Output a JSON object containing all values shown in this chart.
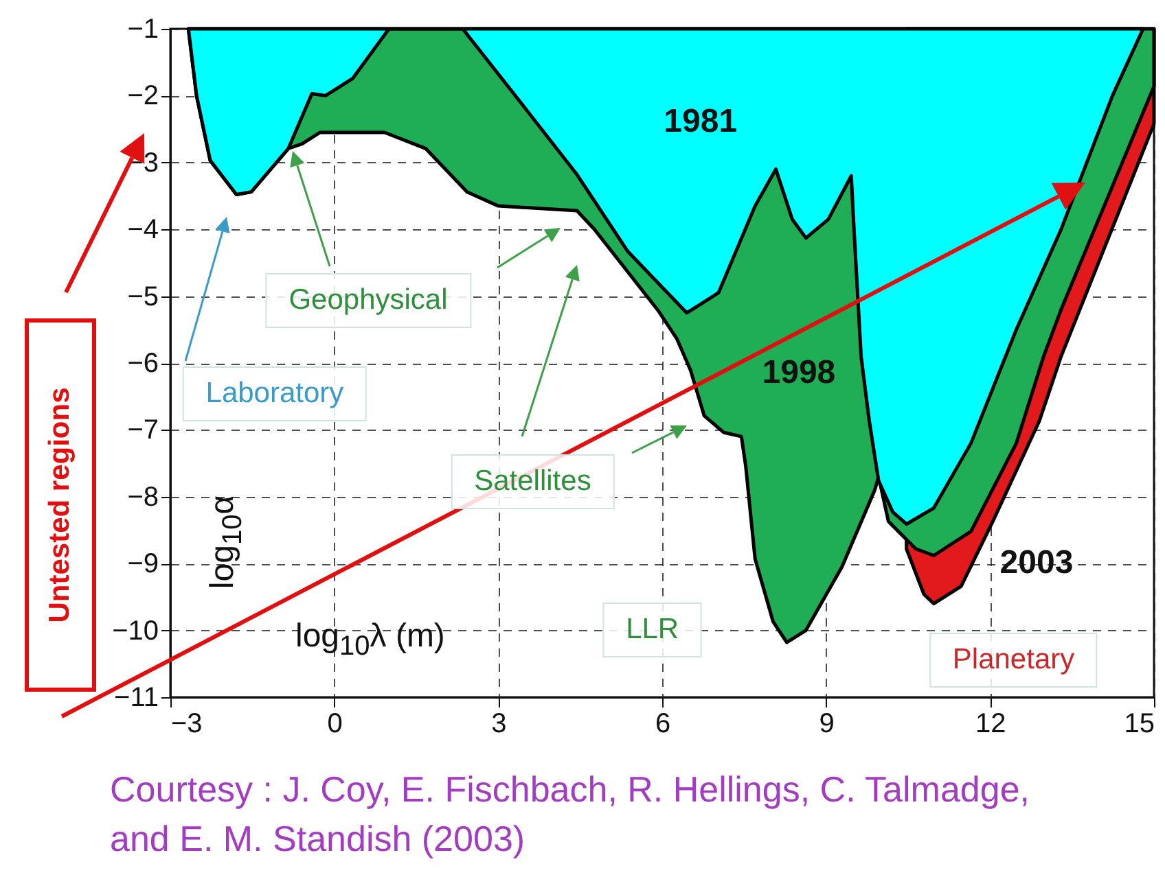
{
  "chart_data": {
    "type": "area",
    "xlabel": "log$_{10}$λ (m)",
    "ylabel": "log$_{10}$α",
    "xlim": [
      -3,
      15
    ],
    "xticks": [
      -3,
      0,
      3,
      6,
      9,
      12,
      15
    ],
    "ylim": [
      -11,
      -1
    ],
    "yticks": [
      -1,
      -2,
      -3,
      -4,
      -5,
      -6,
      -7,
      -8,
      -9,
      -10,
      -11
    ],
    "grid": true,
    "series": [
      {
        "name": "1981",
        "color": "#00ffff",
        "x": [
          -2.67,
          -2.52,
          -2.27,
          -1.79,
          -1.52,
          -0.84,
          -0.41,
          -0.16,
          0.34,
          1.0,
          2.35,
          3.38,
          4.44,
          5.37,
          6.45,
          7.03,
          7.7,
          8.08,
          8.38,
          8.63,
          9.04,
          9.46,
          9.51,
          9.64,
          9.79,
          9.96,
          10.22,
          10.47,
          10.97,
          11.65,
          12.48,
          13.3,
          14.24,
          14.8
        ],
        "values": [
          -1,
          -2.0,
          -2.97,
          -3.48,
          -3.44,
          -2.79,
          -1.97,
          -2.0,
          -1.74,
          -1,
          -1,
          -2.07,
          -3.18,
          -4.33,
          -5.25,
          -4.95,
          -3.65,
          -3.1,
          -3.85,
          -4.13,
          -3.85,
          -3.2,
          -4.0,
          -5.9,
          -6.87,
          -7.76,
          -8.23,
          -8.41,
          -8.17,
          -7.2,
          -5.5,
          -4.0,
          -2.0,
          -1
        ]
      },
      {
        "name": "1998",
        "color": "#1fae55",
        "x": [
          -2.67,
          -2.52,
          -2.27,
          -1.79,
          -1.52,
          -0.84,
          -0.59,
          -0.26,
          0.92,
          1.67,
          2.43,
          3.0,
          4.44,
          4.76,
          5.94,
          6.27,
          6.52,
          6.77,
          7.13,
          7.45,
          7.53,
          7.7,
          8.03,
          8.28,
          8.63,
          9.29,
          9.89,
          9.96,
          10.14,
          10.64,
          10.97,
          11.65,
          12.48,
          12.98,
          13.3,
          15
        ],
        "values": [
          -1,
          -2.0,
          -2.97,
          -3.48,
          -3.44,
          -2.79,
          -2.72,
          -2.55,
          -2.55,
          -2.79,
          -3.44,
          -3.65,
          -3.72,
          -4.0,
          -5.23,
          -5.64,
          -6.11,
          -6.79,
          -7.04,
          -7.1,
          -7.55,
          -8.93,
          -9.87,
          -10.18,
          -10.0,
          -9.05,
          -7.9,
          -7.7,
          -8.37,
          -8.78,
          -8.88,
          -8.52,
          -7.2,
          -5.9,
          -5.2,
          -1.86
        ]
      },
      {
        "name": "2003",
        "color": "#e31a1c",
        "x": [
          10.47,
          10.79,
          10.97,
          11.47,
          12.05,
          12.9,
          13.3,
          15
        ],
        "values": [
          -8.78,
          -9.46,
          -9.6,
          -9.34,
          -8.37,
          -6.87,
          -5.9,
          -2.42
        ]
      }
    ],
    "annotations": [
      "Geophysical",
      "Laboratory",
      "Satellites",
      "LLR",
      "Planetary",
      "Untested regions",
      "Courtesy : J. Coy, E. Fischbach, R. Hellings, C. Talmadge, and E. M. Standish (2003)"
    ]
  }
}
